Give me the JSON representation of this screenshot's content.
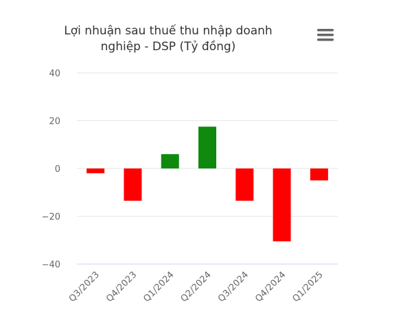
{
  "menu": {
    "icon": "hamburger-menu-icon"
  },
  "colors": {
    "positive": "#0f8a0f",
    "negative": "#ff0000",
    "grid": "#e6e6e6",
    "axis": "#ccd6eb"
  },
  "chart_data": {
    "type": "bar",
    "title_lines": [
      "Lợi nhuận sau thuế thu nhập doanh",
      "nghiệp - DSP (Tỷ đồng)"
    ],
    "categories": [
      "Q3/2023",
      "Q4/2023",
      "Q1/2024",
      "Q2/2024",
      "Q3/2024",
      "Q4/2024",
      "Q1/2025"
    ],
    "values": [
      -2,
      -13.5,
      6,
      17.5,
      -13.5,
      -30.5,
      -5
    ],
    "ylim": [
      -40,
      40
    ],
    "yticks": [
      "40",
      "20",
      "0",
      "−20",
      "−40"
    ],
    "ytick_values": [
      40,
      20,
      0,
      -20,
      -40
    ],
    "grid": true,
    "legend": "none"
  }
}
